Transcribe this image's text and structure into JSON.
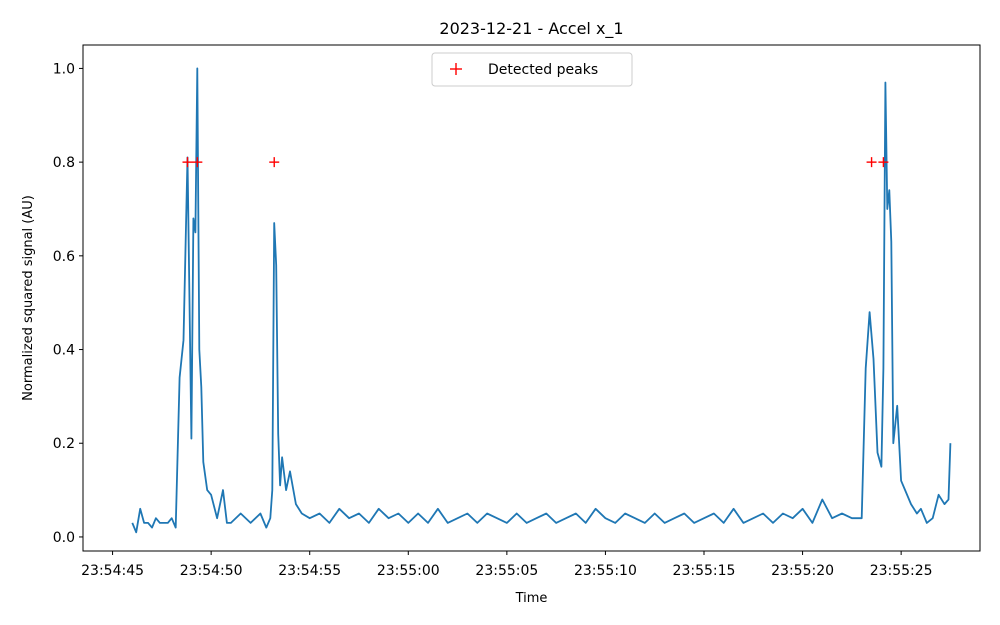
{
  "chart_data": {
    "type": "line",
    "title": "2023-12-21 - Accel x_1",
    "xlabel": "Time",
    "ylabel": "Normalized squared signal (AU)",
    "x_axis_kind": "time (seconds on 2023-12-21)",
    "xlim": [
      "23:54:43.5",
      "23:55:29.0"
    ],
    "ylim": [
      -0.03,
      1.05
    ],
    "x_ticks": [
      "23:54:45",
      "23:54:50",
      "23:54:55",
      "23:55:00",
      "23:55:05",
      "23:55:10",
      "23:55:15",
      "23:55:20",
      "23:55:25"
    ],
    "y_ticks": [
      "0.0",
      "0.2",
      "0.4",
      "0.6",
      "0.8",
      "1.0"
    ],
    "grid": false,
    "legend": {
      "position": "top-center",
      "entries": [
        "Detected peaks"
      ]
    },
    "colors": {
      "signal": "#1f77b4",
      "peaks": "#ff0000"
    },
    "series": [
      {
        "kind": "line",
        "x": [
          "23:54:46.0",
          "23:54:46.2",
          "23:54:46.4",
          "23:54:46.6",
          "23:54:46.8",
          "23:54:47.0",
          "23:54:47.2",
          "23:54:47.4",
          "23:54:47.6",
          "23:54:47.8",
          "23:54:48.0",
          "23:54:48.2",
          "23:54:48.4",
          "23:54:48.6",
          "23:54:48.8",
          "23:54:49.0",
          "23:54:49.1",
          "23:54:49.2",
          "23:54:49.3",
          "23:54:49.4",
          "23:54:49.5",
          "23:54:49.6",
          "23:54:49.8",
          "23:54:50.0",
          "23:54:50.3",
          "23:54:50.6",
          "23:54:50.8",
          "23:54:51.0",
          "23:54:51.5",
          "23:54:52.0",
          "23:54:52.5",
          "23:54:52.8",
          "23:54:53.0",
          "23:54:53.1",
          "23:54:53.2",
          "23:54:53.3",
          "23:54:53.4",
          "23:54:53.5",
          "23:54:53.6",
          "23:54:53.8",
          "23:54:54.0",
          "23:54:54.3",
          "23:54:54.6",
          "23:54:55.0",
          "23:54:55.5",
          "23:54:56.0",
          "23:54:56.5",
          "23:54:57.0",
          "23:54:57.5",
          "23:54:58.0",
          "23:54:58.5",
          "23:54:59.0",
          "23:54:59.5",
          "23:55:00.0",
          "23:55:00.5",
          "23:55:01.0",
          "23:55:01.5",
          "23:55:02.0",
          "23:55:02.5",
          "23:55:03.0",
          "23:55:03.5",
          "23:55:04.0",
          "23:55:04.5",
          "23:55:05.0",
          "23:55:05.5",
          "23:55:06.0",
          "23:55:06.5",
          "23:55:07.0",
          "23:55:07.5",
          "23:55:08.0",
          "23:55:08.5",
          "23:55:09.0",
          "23:55:09.5",
          "23:55:10.0",
          "23:55:10.5",
          "23:55:11.0",
          "23:55:11.5",
          "23:55:12.0",
          "23:55:12.5",
          "23:55:13.0",
          "23:55:13.5",
          "23:55:14.0",
          "23:55:14.5",
          "23:55:15.0",
          "23:55:15.5",
          "23:55:16.0",
          "23:55:16.5",
          "23:55:17.0",
          "23:55:17.5",
          "23:55:18.0",
          "23:55:18.5",
          "23:55:19.0",
          "23:55:19.5",
          "23:55:20.0",
          "23:55:20.5",
          "23:55:21.0",
          "23:55:21.5",
          "23:55:22.0",
          "23:55:22.5",
          "23:55:23.0",
          "23:55:23.2",
          "23:55:23.4",
          "23:55:23.6",
          "23:55:23.8",
          "23:55:24.0",
          "23:55:24.1",
          "23:55:24.2",
          "23:55:24.3",
          "23:55:24.4",
          "23:55:24.5",
          "23:55:24.6",
          "23:55:24.8",
          "23:55:25.0",
          "23:55:25.2",
          "23:55:25.5",
          "23:55:25.8",
          "23:55:26.0",
          "23:55:26.3",
          "23:55:26.6",
          "23:55:26.9",
          "23:55:27.2",
          "23:55:27.4",
          "23:55:27.5"
        ],
        "y": [
          0.03,
          0.01,
          0.06,
          0.03,
          0.03,
          0.02,
          0.04,
          0.03,
          0.03,
          0.03,
          0.04,
          0.02,
          0.34,
          0.42,
          0.81,
          0.21,
          0.68,
          0.65,
          1.0,
          0.4,
          0.32,
          0.16,
          0.1,
          0.09,
          0.04,
          0.1,
          0.03,
          0.03,
          0.05,
          0.03,
          0.05,
          0.02,
          0.04,
          0.1,
          0.67,
          0.58,
          0.22,
          0.11,
          0.17,
          0.1,
          0.14,
          0.07,
          0.05,
          0.04,
          0.05,
          0.03,
          0.06,
          0.04,
          0.05,
          0.03,
          0.06,
          0.04,
          0.05,
          0.03,
          0.05,
          0.03,
          0.06,
          0.03,
          0.04,
          0.05,
          0.03,
          0.05,
          0.04,
          0.03,
          0.05,
          0.03,
          0.04,
          0.05,
          0.03,
          0.04,
          0.05,
          0.03,
          0.06,
          0.04,
          0.03,
          0.05,
          0.04,
          0.03,
          0.05,
          0.03,
          0.04,
          0.05,
          0.03,
          0.04,
          0.05,
          0.03,
          0.06,
          0.03,
          0.04,
          0.05,
          0.03,
          0.05,
          0.04,
          0.06,
          0.03,
          0.08,
          0.04,
          0.05,
          0.04,
          0.04,
          0.36,
          0.48,
          0.38,
          0.18,
          0.15,
          0.36,
          0.97,
          0.7,
          0.74,
          0.63,
          0.2,
          0.28,
          0.12,
          0.1,
          0.07,
          0.05,
          0.06,
          0.03,
          0.04,
          0.09,
          0.07,
          0.08,
          0.2
        ]
      },
      {
        "kind": "markers",
        "name": "Detected peaks",
        "x": [
          "23:54:48.8",
          "23:54:49.3",
          "23:54:53.2",
          "23:55:23.5",
          "23:55:24.1"
        ],
        "y": [
          0.8,
          0.8,
          0.8,
          0.8,
          0.8
        ]
      }
    ]
  }
}
